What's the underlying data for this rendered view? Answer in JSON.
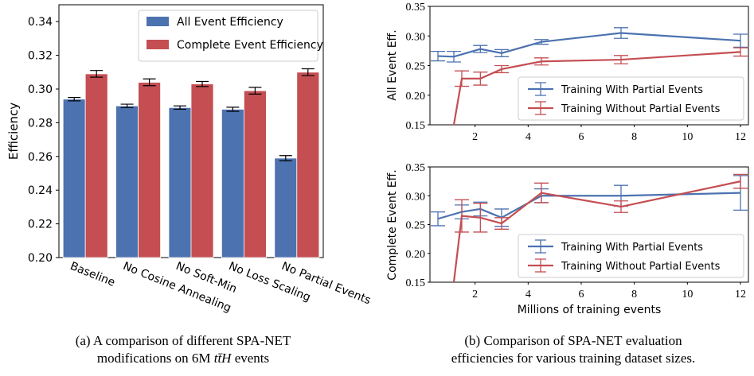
{
  "colors": {
    "blue": "#4C72B0",
    "red": "#C44E52",
    "error_bar": "#000000"
  },
  "chart_data": [
    {
      "type": "bar",
      "ylabel": "Efficiency",
      "ylim": [
        0.2,
        0.35
      ],
      "yticks": [
        "0.20",
        "0.22",
        "0.24",
        "0.26",
        "0.28",
        "0.30",
        "0.32",
        "0.34"
      ],
      "categories": [
        "Baseline",
        "No Cosine Annealing",
        "No Soft-Min",
        "No Loss Scaling",
        "No Partial Events"
      ],
      "legend_position": "top-right",
      "grid": false,
      "series": [
        {
          "name": "All Event Efficiency",
          "color": "#4C72B0",
          "values": [
            0.294,
            0.29,
            0.289,
            0.288,
            0.259
          ],
          "errors": [
            0.001,
            0.001,
            0.001,
            0.0012,
            0.0015
          ]
        },
        {
          "name": "Complete Event Efficiency",
          "color": "#C44E52",
          "values": [
            0.309,
            0.304,
            0.303,
            0.299,
            0.31
          ],
          "errors": [
            0.002,
            0.002,
            0.0015,
            0.002,
            0.002
          ]
        }
      ]
    },
    {
      "type": "line",
      "ylabel": "All Event Eff.",
      "ylim": [
        0.15,
        0.35
      ],
      "yticks": [
        "0.15",
        "0.20",
        "0.25",
        "0.30",
        "0.35"
      ],
      "xlim": [
        0.3,
        12.3
      ],
      "xticks": [
        "2",
        "4",
        "6",
        "8",
        "10",
        "12"
      ],
      "legend_position": "lower-right",
      "grid": false,
      "series": [
        {
          "name": "Training With Partial Events",
          "color": "#4C72B0",
          "x": [
            0.6,
            1.2,
            2.2,
            3.0,
            4.5,
            7.5,
            12.0
          ],
          "y": [
            0.266,
            0.265,
            0.278,
            0.271,
            0.29,
            0.305,
            0.292
          ],
          "errors": [
            0.008,
            0.009,
            0.006,
            0.006,
            0.004,
            0.009,
            0.011
          ]
        },
        {
          "name": "Training Without Partial Events",
          "color": "#C44E52",
          "x": [
            1.2,
            1.5,
            2.2,
            3.0,
            4.5,
            7.5,
            12.0
          ],
          "y": [
            0.15,
            0.228,
            0.228,
            0.244,
            0.257,
            0.26,
            0.273
          ],
          "errors": [
            0.0,
            0.013,
            0.011,
            0.006,
            0.006,
            0.007,
            0.007
          ]
        }
      ]
    },
    {
      "type": "line",
      "ylabel": "Complete Event Eff.",
      "xlabel": "Millions of training events",
      "ylim": [
        0.15,
        0.35
      ],
      "yticks": [
        "0.15",
        "0.20",
        "0.25",
        "0.30",
        "0.35"
      ],
      "xlim": [
        0.3,
        12.3
      ],
      "xticks": [
        "2",
        "4",
        "6",
        "8",
        "10",
        "12"
      ],
      "legend_position": "lower-right",
      "grid": false,
      "series": [
        {
          "name": "Training With Partial Events",
          "color": "#4C72B0",
          "x": [
            0.6,
            1.5,
            2.2,
            3.0,
            4.5,
            7.5,
            12.0
          ],
          "y": [
            0.26,
            0.272,
            0.277,
            0.262,
            0.3,
            0.3,
            0.305
          ],
          "errors": [
            0.012,
            0.012,
            0.012,
            0.015,
            0.012,
            0.018,
            0.03
          ]
        },
        {
          "name": "Training Without Partial Events",
          "color": "#C44E52",
          "x": [
            1.2,
            1.5,
            2.2,
            3.0,
            4.5,
            7.5,
            12.0
          ],
          "y": [
            0.15,
            0.265,
            0.262,
            0.252,
            0.305,
            0.281,
            0.325
          ],
          "errors": [
            0.0,
            0.028,
            0.025,
            0.01,
            0.017,
            0.01,
            0.012
          ]
        }
      ]
    }
  ],
  "captions": {
    "a": {
      "prefix": "(a) A comparison of different ",
      "model": "SPA-NET",
      "line1_end": "",
      "line2_pre": "modifications on 6M ",
      "math": "tt̄H",
      "line2_post": " events"
    },
    "b": {
      "prefix": "(b) Comparison of ",
      "model": "SPA-NET",
      "line1_end": " evaluation",
      "line2": "efficiencies for various training dataset sizes."
    }
  }
}
